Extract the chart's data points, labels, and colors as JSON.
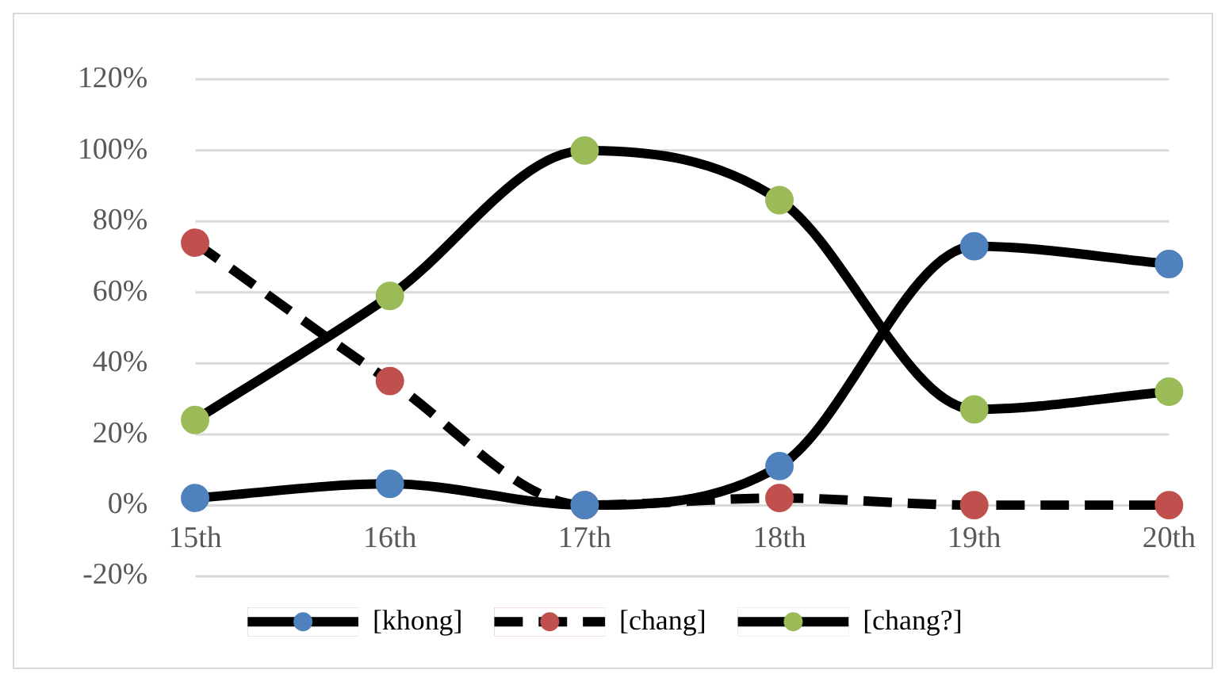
{
  "chart_data": {
    "type": "line",
    "categories": [
      "15th",
      "16th",
      "17th",
      "18th",
      "19th",
      "20th"
    ],
    "series": [
      {
        "name": "[khong]",
        "color": "#4f81bd",
        "values": [
          2,
          6,
          0,
          11,
          73,
          68
        ],
        "line_style": "solid"
      },
      {
        "name": "[chang]",
        "color": "#c0504d",
        "values": [
          74,
          35,
          0,
          2,
          0,
          0
        ],
        "line_style": "dashed"
      },
      {
        "name": "[chang?]",
        "color": "#9bbb59",
        "values": [
          24,
          59,
          100,
          86,
          27,
          32
        ],
        "line_style": "solid"
      }
    ],
    "ylim": [
      -20,
      120
    ],
    "yticks": [
      {
        "value": -20,
        "label": "-20%"
      },
      {
        "value": 0,
        "label": "0%"
      },
      {
        "value": 20,
        "label": "20%"
      },
      {
        "value": 40,
        "label": "40%"
      },
      {
        "value": 60,
        "label": "60%"
      },
      {
        "value": 80,
        "label": "80%"
      },
      {
        "value": 100,
        "label": "100%"
      },
      {
        "value": 120,
        "label": "120%"
      }
    ],
    "grid": "y",
    "legend": "bottom",
    "marker": "circle"
  }
}
